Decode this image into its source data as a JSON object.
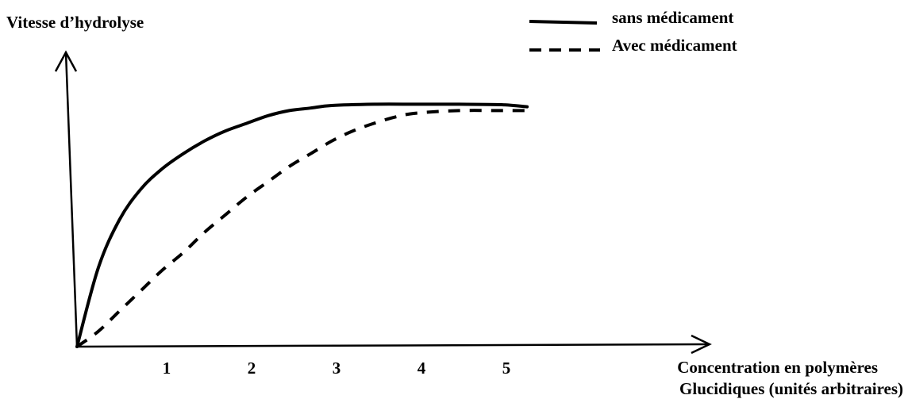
{
  "chart_data": {
    "type": "line",
    "title": "",
    "ylabel": "Vitesse d’hydrolyse",
    "xlabel_lines": [
      "Concentration en polymères",
      "Glucidiques (unités arbitraires)"
    ],
    "x_ticks": [
      1,
      2,
      3,
      4,
      5
    ],
    "xlim": [
      0,
      5.3
    ],
    "ylim": [
      0,
      1.0
    ],
    "legend_position": "top-right",
    "series": [
      {
        "name": "sans médicament",
        "style": "solid",
        "x": [
          0,
          0.25,
          0.5,
          0.75,
          1.0,
          1.25,
          1.5,
          1.75,
          2.0,
          2.25,
          2.5,
          2.75,
          3.0,
          3.5,
          4.0,
          4.5,
          5.0,
          5.3
        ],
        "y": [
          0,
          0.31,
          0.5,
          0.62,
          0.7,
          0.76,
          0.81,
          0.85,
          0.88,
          0.91,
          0.93,
          0.94,
          0.95,
          0.955,
          0.955,
          0.955,
          0.953,
          0.945
        ]
      },
      {
        "name": "Avec médicament",
        "style": "dashed",
        "x": [
          0,
          0.25,
          0.5,
          0.75,
          1.0,
          1.25,
          1.5,
          1.75,
          2.0,
          2.25,
          2.5,
          2.75,
          3.0,
          3.25,
          3.5,
          3.75,
          4.0,
          4.5,
          5.0,
          5.3
        ],
        "y": [
          0,
          0.06,
          0.14,
          0.22,
          0.3,
          0.37,
          0.45,
          0.52,
          0.59,
          0.65,
          0.71,
          0.76,
          0.81,
          0.85,
          0.88,
          0.905,
          0.92,
          0.93,
          0.93,
          0.93
        ]
      }
    ]
  }
}
